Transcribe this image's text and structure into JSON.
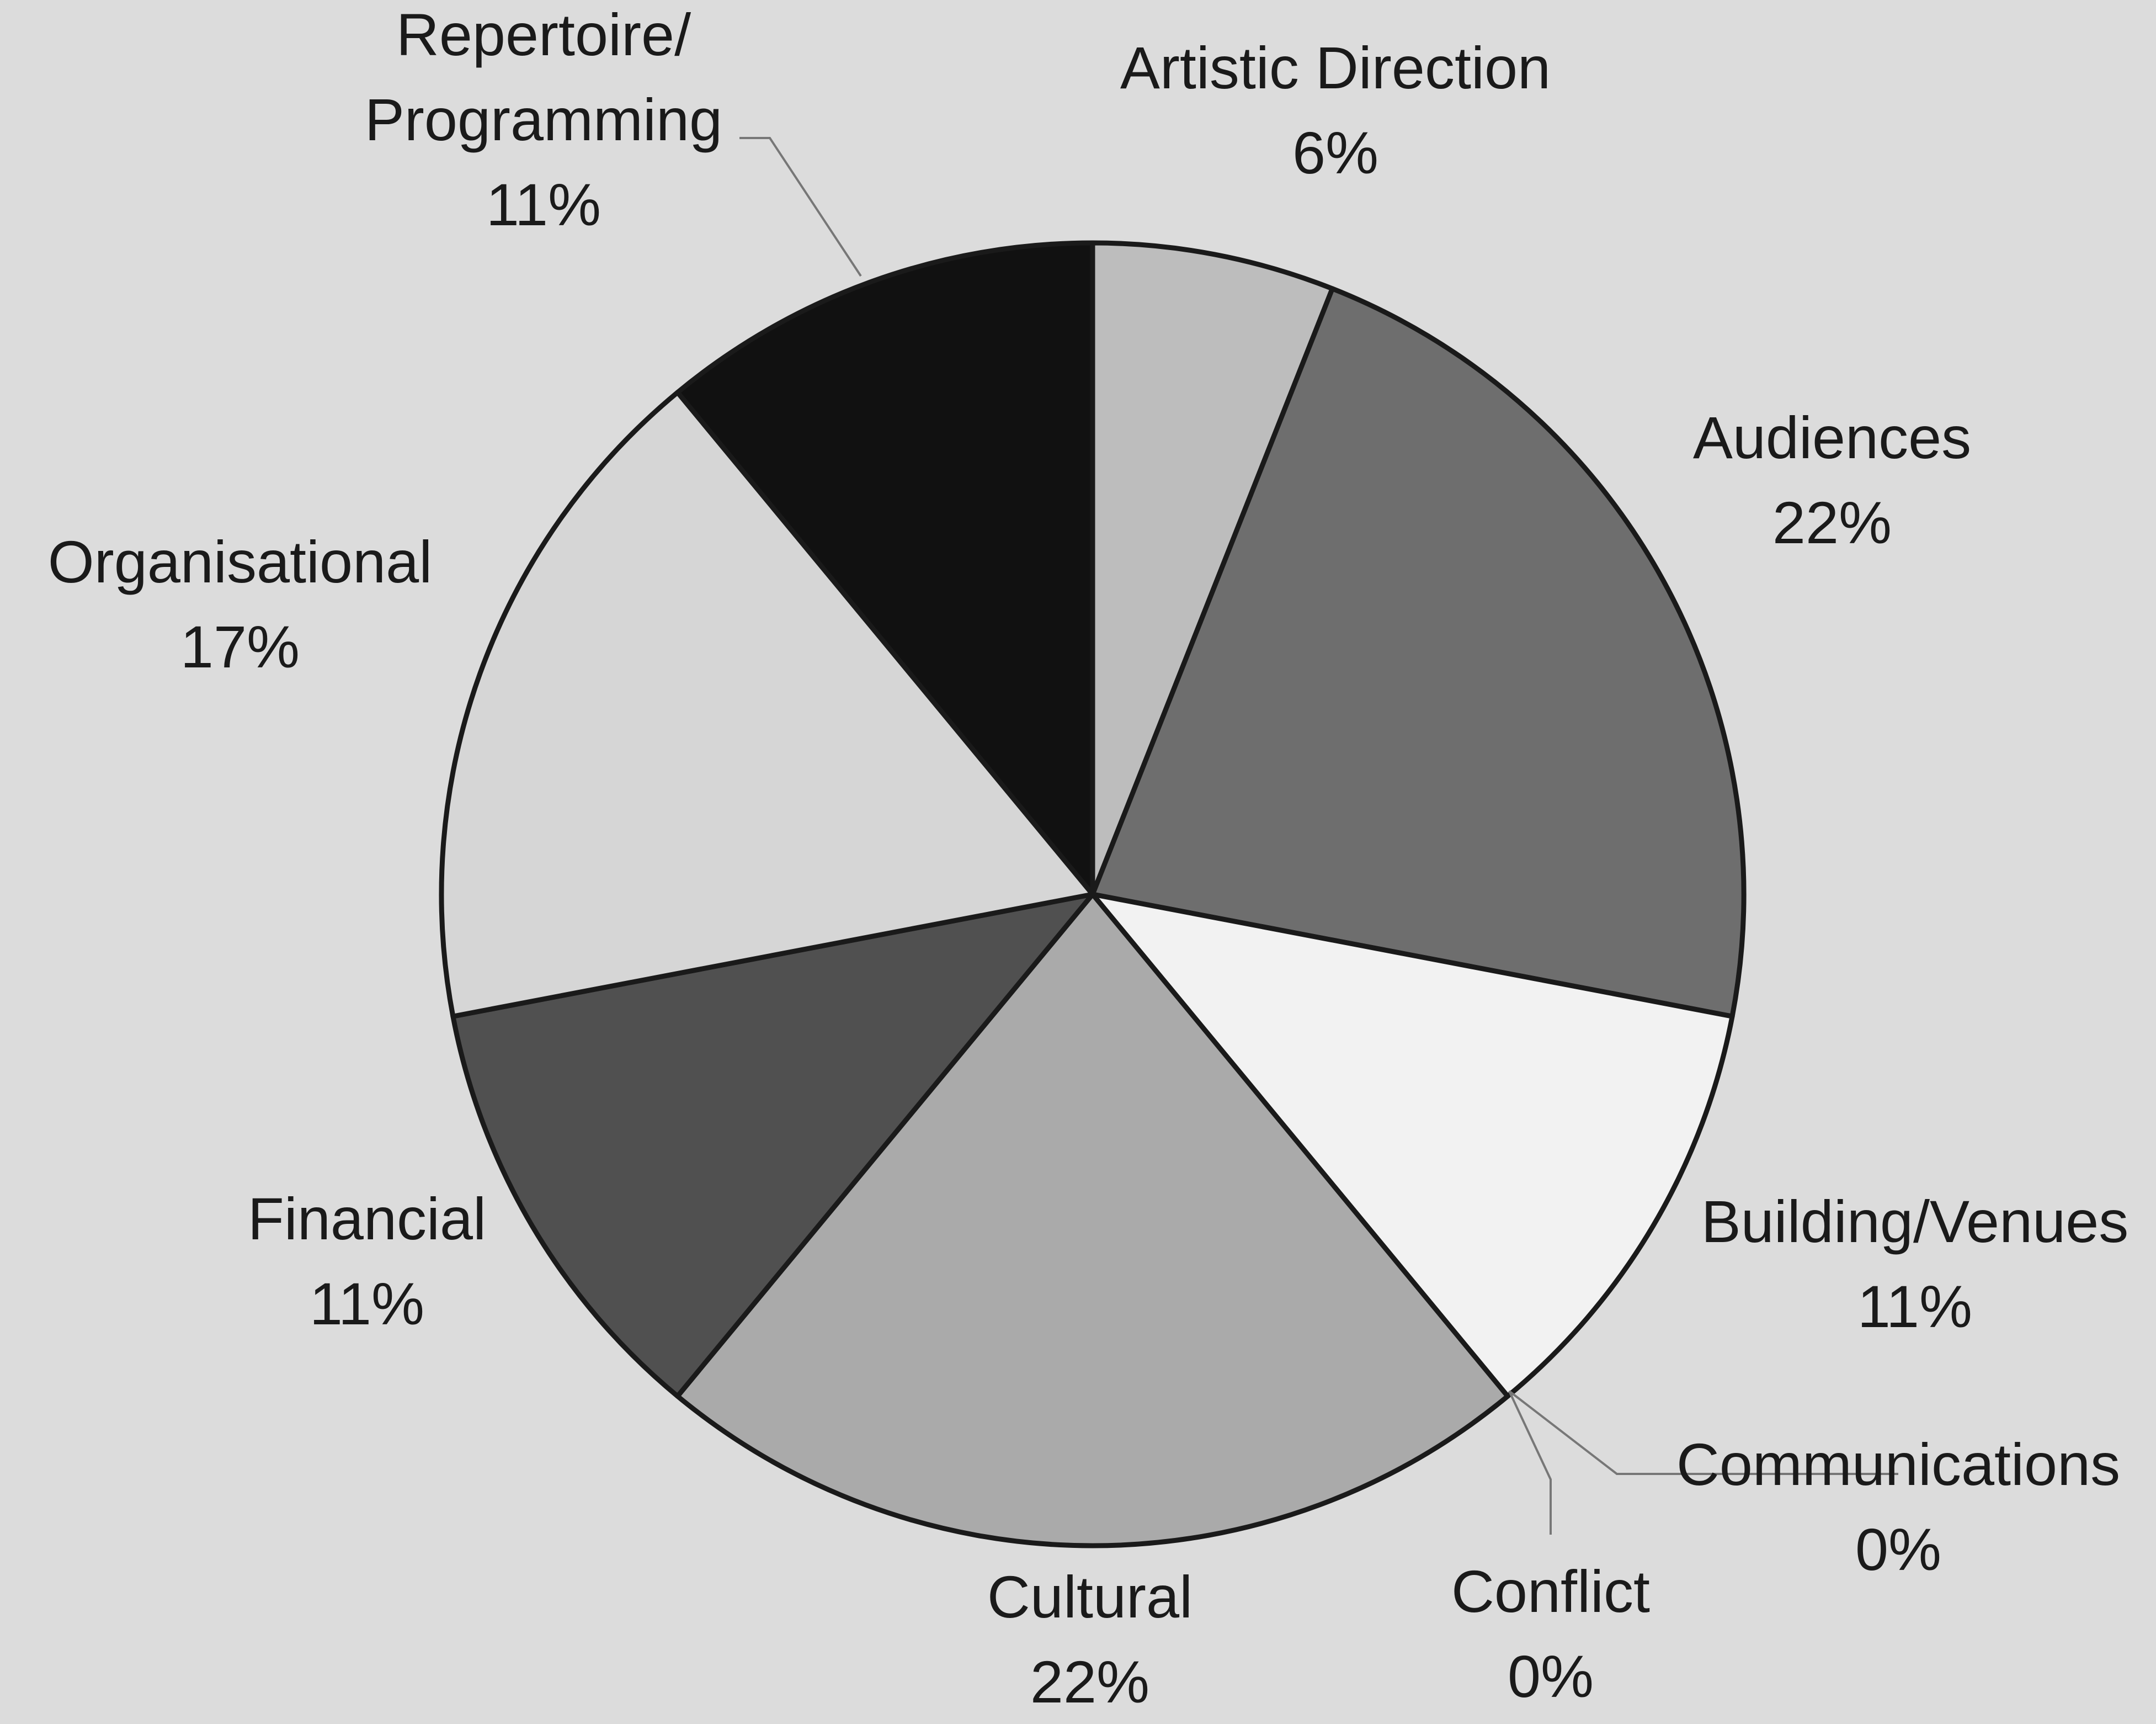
{
  "chart_data": {
    "type": "pie",
    "title": "",
    "slices": [
      {
        "label": "Artistic Direction",
        "percent_label": "6%",
        "value": 6,
        "color": "#bdbdbd"
      },
      {
        "label": "Audiences",
        "percent_label": "22%",
        "value": 22,
        "color": "#6e6e6e"
      },
      {
        "label": "Building/Venues",
        "percent_label": "11%",
        "value": 11,
        "color": "#f2f2f2"
      },
      {
        "label": "Communications",
        "percent_label": "0%",
        "value": 0,
        "color": "#9a9a9a"
      },
      {
        "label": "Conflict",
        "percent_label": "0%",
        "value": 0,
        "color": "#555555"
      },
      {
        "label": "Cultural",
        "percent_label": "22%",
        "value": 22,
        "color": "#aaaaaa"
      },
      {
        "label": "Financial",
        "percent_label": "11%",
        "value": 11,
        "color": "#505050"
      },
      {
        "label": "Organisational",
        "percent_label": "17%",
        "value": 17,
        "color": "#d6d6d6"
      },
      {
        "label": "Repertoire/\nProgramming",
        "percent_label": "11%",
        "value": 11,
        "color": "#111111"
      }
    ],
    "legend": "none",
    "labels": "outside",
    "start_angle": "12 o'clock",
    "direction": "clockwise"
  },
  "colors": {
    "background": "#dcdcdc",
    "outline": "#1a1a1a",
    "text": "#1a1a1a"
  }
}
